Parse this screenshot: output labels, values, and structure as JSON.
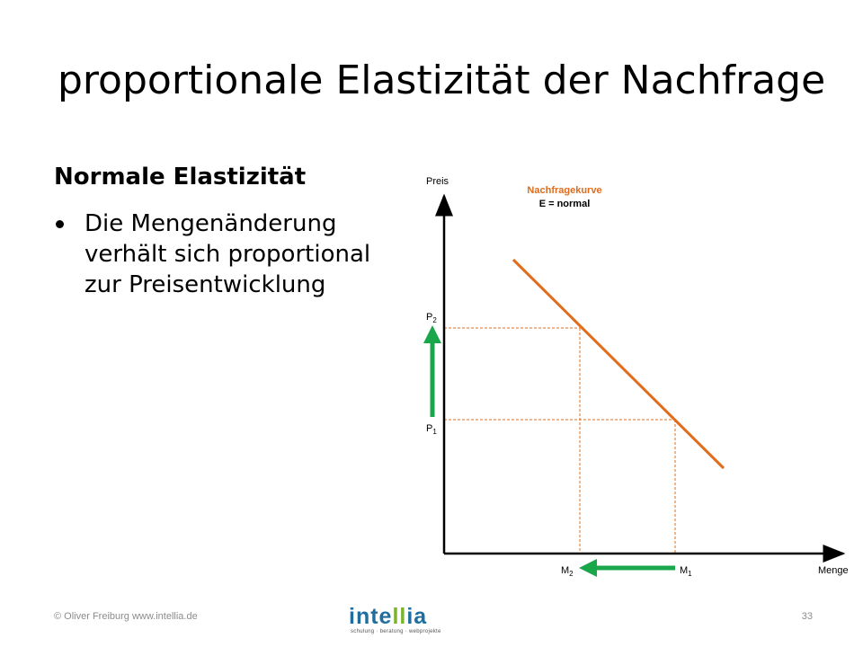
{
  "slide": {
    "title": "proportionale Elastizität der Nachfrage",
    "subtitle": "Normale Elastizität",
    "bullets": [
      "Die Mengenänderung verhält sich proportional zur Preisentwicklung"
    ]
  },
  "diagram": {
    "y_axis_label": "Preis",
    "x_axis_label": "Menge",
    "curve_title": "Nachfragekurve",
    "curve_subtitle": "E = normal",
    "price_labels": [
      {
        "base": "P",
        "sub": "2"
      },
      {
        "base": "P",
        "sub": "1"
      }
    ],
    "quantity_labels": [
      {
        "base": "M",
        "sub": "2"
      },
      {
        "base": "M",
        "sub": "1"
      }
    ],
    "colors": {
      "curve": "#e06c1c",
      "guides": "#e06c1c",
      "arrows": "#1aa64a",
      "axes": "#000000",
      "curve_title": "#e06c1c"
    }
  },
  "footer": {
    "copyright": "© Oliver Freiburg www.intellia.de",
    "page_number": "33",
    "logo_text_start": "inte",
    "logo_text_mid": "ll",
    "logo_text_end": "ia",
    "logo_tagline": "schulung · beratung · webprojekte"
  }
}
